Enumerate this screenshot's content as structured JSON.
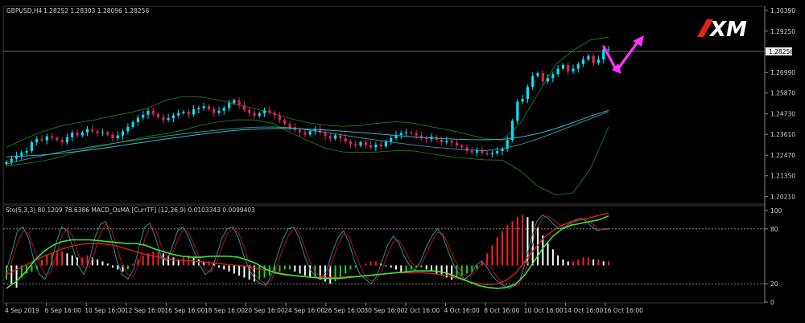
{
  "chart_data": [
    {
      "type": "candlestick",
      "title": "GBPUSD,H4",
      "ohlc_header": "1.28252 1.28303 1.28096 1.28256",
      "last_price": "1.28256",
      "ylim": [
        1.198,
        1.306
      ],
      "y_ticks": [
        "1.30390",
        "1.29250",
        "1.28256",
        "1.26990",
        "1.25870",
        "1.24730",
        "1.23610",
        "1.22470",
        "1.21350",
        "1.20210"
      ],
      "x_ticks": [
        "4 Sep 2019",
        "6 Sep 16:00",
        "10 Sep 16:00",
        "12 Sep 16:00",
        "16 Sep 16:00",
        "18 Sep 16:00",
        "20 Sep 16:00",
        "24 Sep 16:00",
        "26 Sep 16:00",
        "30 Sep 16:00",
        "2 Oct 16:00",
        "4 Oct 16:00",
        "8 Oct 16:00",
        "10 Oct 16:00",
        "14 Oct 16:00",
        "16 Oct 16:00"
      ],
      "close": [
        1.221,
        1.2228,
        1.2245,
        1.2262,
        1.227,
        1.2318,
        1.2335,
        1.2328,
        1.235,
        1.2342,
        1.233,
        1.2318,
        1.2345,
        1.237,
        1.2355,
        1.2372,
        1.239,
        1.2378,
        1.2368,
        1.2372,
        1.236,
        1.234,
        1.2355,
        1.2378,
        1.2402,
        1.2428,
        1.2452,
        1.2468,
        1.249,
        1.2472,
        1.2455,
        1.244,
        1.245,
        1.2465,
        1.2478,
        1.2485,
        1.247,
        1.2498,
        1.2505,
        1.2515,
        1.2498,
        1.2478,
        1.249,
        1.2505,
        1.2532,
        1.2548,
        1.252,
        1.2495,
        1.2478,
        1.2462,
        1.2475,
        1.2492,
        1.248,
        1.2465,
        1.244,
        1.2418,
        1.24,
        1.2385,
        1.2372,
        1.236,
        1.2378,
        1.2392,
        1.237,
        1.2352,
        1.2338,
        1.2355,
        1.234,
        1.2322,
        1.2308,
        1.23,
        1.2318,
        1.2302,
        1.229,
        1.2305,
        1.2295,
        1.2322,
        1.234,
        1.2358,
        1.2368,
        1.2372,
        1.2368,
        1.2355,
        1.234,
        1.2335,
        1.2348,
        1.2332,
        1.2318,
        1.2325,
        1.2315,
        1.23,
        1.229,
        1.227,
        1.2262,
        1.2275,
        1.226,
        1.2252,
        1.2258,
        1.227,
        1.2282,
        1.233,
        1.2435,
        1.254,
        1.2555,
        1.262,
        1.268,
        1.2695,
        1.265,
        1.2668,
        1.269,
        1.272,
        1.274,
        1.2705,
        1.272,
        1.2745,
        1.277,
        1.279,
        1.2752,
        1.277,
        1.2825,
        1.2826
      ],
      "moving_average": [
        1.22,
        1.2223,
        1.2244,
        1.2264,
        1.228,
        1.2296,
        1.2311,
        1.2326,
        1.2339,
        1.2352,
        1.2364,
        1.2375,
        1.2385,
        1.2394,
        1.24,
        1.2402,
        1.2398,
        1.2386,
        1.2372,
        1.2357,
        1.2342,
        1.2328,
        1.2315,
        1.2303,
        1.2292,
        1.2284,
        1.2276,
        1.2272,
        1.2282,
        1.2305,
        1.2336,
        1.2372,
        1.241,
        1.2448,
        1.2485
      ],
      "upper_band": [
        1.229,
        1.2335,
        1.2375,
        1.2405,
        1.2425,
        1.244,
        1.2462,
        1.248,
        1.2505,
        1.2548,
        1.2568,
        1.2565,
        1.2548,
        1.2525,
        1.2502,
        1.2478,
        1.2448,
        1.2425,
        1.2412,
        1.2405,
        1.241,
        1.2422,
        1.243,
        1.2422,
        1.2402,
        1.2385,
        1.2362,
        1.2338,
        1.233,
        1.242,
        1.258,
        1.2742,
        1.282,
        1.2878,
        1.2892
      ],
      "lower_band": [
        1.219,
        1.22,
        1.2215,
        1.2236,
        1.2268,
        1.229,
        1.231,
        1.233,
        1.235,
        1.2365,
        1.2385,
        1.2412,
        1.243,
        1.244,
        1.244,
        1.2422,
        1.2372,
        1.2328,
        1.2285,
        1.2265,
        1.2262,
        1.2265,
        1.2272,
        1.227,
        1.2255,
        1.224,
        1.223,
        1.2222,
        1.222,
        1.2162,
        1.2078,
        1.203,
        1.2042,
        1.2178,
        1.2402
      ],
      "slow_ma": [
        1.2238,
        1.2242,
        1.2248,
        1.2256,
        1.2266,
        1.2278,
        1.229,
        1.2305,
        1.2318,
        1.2332,
        1.2345,
        1.2358,
        1.237,
        1.238,
        1.2388,
        1.2392,
        1.2394,
        1.2392,
        1.2388,
        1.2382,
        1.2375,
        1.2368,
        1.236,
        1.2352,
        1.2345,
        1.234,
        1.2335,
        1.2332,
        1.2331,
        1.2335,
        1.2348,
        1.2368,
        1.2395,
        1.2428,
        1.2462,
        1.2492
      ],
      "legend": "top-left",
      "grid": false
    },
    {
      "type": "indicator",
      "title": "Sto(5,3,3) 80.1209 78.6386  MACD_OsMA [CurrTF] (12,26,9) 0.0103343 0.0099403",
      "ylim": [
        0,
        100
      ],
      "levels": [
        20,
        80
      ],
      "y_ticks": [
        "100",
        "80",
        "20",
        "0"
      ],
      "histogram": [
        -7,
        -9,
        -11,
        -6,
        -4,
        -3,
        -2,
        3,
        5,
        6,
        7,
        7,
        6,
        5,
        4,
        4,
        5,
        4,
        3,
        2,
        1,
        -1,
        -2,
        -3,
        -2,
        1,
        3,
        5,
        6,
        7,
        7,
        6,
        5,
        4,
        3,
        4,
        5,
        4,
        3,
        2,
        2,
        1,
        -1,
        -2,
        -3,
        -4,
        -5,
        -6,
        -7,
        -8,
        -7,
        -6,
        -5,
        -4,
        -3,
        -2,
        -2,
        -3,
        -4,
        -5,
        -6,
        -6,
        -7,
        -8,
        -9,
        -8,
        -6,
        -4,
        -2,
        -1,
        0,
        1,
        2,
        2,
        1,
        0,
        -1,
        -2,
        -3,
        -3,
        -2,
        -1,
        -1,
        -2,
        -3,
        -4,
        -5,
        -6,
        -7,
        -6,
        -5,
        -4,
        -3,
        -2,
        2,
        6,
        10,
        14,
        17,
        20,
        22,
        24,
        25,
        24,
        22,
        19,
        15,
        11,
        8,
        5,
        3,
        2,
        2,
        3,
        4,
        4,
        3,
        3,
        2,
        2
      ],
      "histogram_colors": "red=up, white=down, green=negative-up",
      "stoch_k": [
        35,
        55,
        78,
        82,
        70,
        45,
        30,
        25,
        40,
        65,
        82,
        78,
        60,
        40,
        30,
        45,
        70,
        85,
        88,
        70,
        45,
        30,
        25,
        35,
        60,
        82,
        86,
        70,
        50,
        45,
        60,
        78,
        82,
        70,
        55,
        40,
        30,
        35,
        50,
        70,
        80,
        82,
        70,
        50,
        35,
        25,
        20,
        18,
        30,
        50,
        68,
        80,
        82,
        70,
        50,
        35,
        28,
        25,
        35,
        55,
        70,
        78,
        65,
        45,
        30,
        25,
        20,
        28,
        45,
        62,
        72,
        65,
        50,
        40,
        35,
        45,
        60,
        72,
        80,
        72,
        55,
        40,
        30,
        25,
        30,
        40,
        45,
        38,
        28,
        22,
        18,
        15,
        18,
        25,
        45,
        70,
        88,
        95,
        92,
        85,
        80,
        82,
        86,
        90,
        92,
        88,
        82,
        78,
        80,
        80
      ],
      "stoch_d": [
        30,
        45,
        65,
        78,
        75,
        58,
        42,
        30,
        32,
        50,
        72,
        80,
        72,
        52,
        38,
        38,
        55,
        75,
        85,
        80,
        60,
        40,
        30,
        28,
        42,
        68,
        82,
        80,
        62,
        50,
        52,
        68,
        80,
        76,
        62,
        48,
        36,
        33,
        42,
        60,
        75,
        80,
        76,
        60,
        42,
        30,
        23,
        20,
        24,
        40,
        58,
        72,
        80,
        76,
        60,
        43,
        32,
        28,
        30,
        45,
        62,
        74,
        72,
        55,
        40,
        28,
        23,
        24,
        35,
        52,
        66,
        68,
        58,
        46,
        38,
        40,
        52,
        66,
        76,
        75,
        62,
        48,
        36,
        29,
        28,
        34,
        42,
        42,
        34,
        26,
        20,
        17,
        17,
        22,
        35,
        58,
        80,
        92,
        94,
        90,
        85,
        82,
        84,
        88,
        90,
        90,
        86,
        80,
        79,
        79
      ],
      "signal_line": [
        15,
        22,
        32,
        45,
        55,
        62,
        66,
        68,
        68,
        68,
        67,
        66,
        65,
        64,
        64,
        62,
        58,
        55,
        52,
        50,
        49,
        49,
        50,
        50,
        50,
        49,
        46,
        42,
        36,
        32,
        30,
        29,
        28,
        27,
        26,
        26,
        26,
        27,
        28,
        29,
        30,
        31,
        32,
        33,
        34,
        34,
        34,
        33,
        30,
        26,
        22,
        18,
        16,
        15,
        16,
        20,
        30,
        45,
        60,
        72,
        80,
        84,
        86,
        88,
        90,
        94
      ],
      "signal_line2": [
        30,
        35,
        40,
        45,
        50,
        54,
        58,
        61,
        63,
        64,
        64,
        63,
        61,
        58,
        55,
        52,
        50,
        48,
        46,
        45,
        45,
        44,
        43,
        42,
        41,
        40,
        39,
        37,
        35,
        33,
        31,
        29,
        28,
        27,
        27,
        27,
        27,
        28,
        28,
        29,
        30,
        31,
        32,
        32,
        32,
        32,
        31,
        30,
        28,
        25,
        22,
        20,
        19,
        20,
        24,
        32,
        45,
        58,
        70,
        78,
        84,
        88,
        90,
        92,
        95,
        97
      ]
    }
  ]
}
